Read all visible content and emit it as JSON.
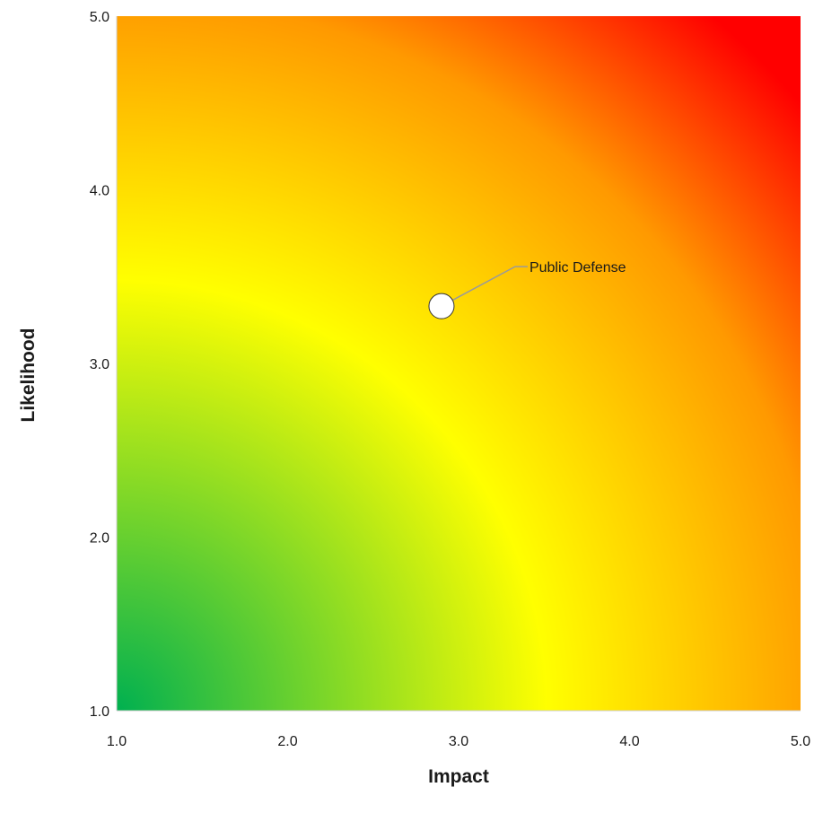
{
  "chart_data": {
    "type": "scatter",
    "title": "",
    "xlabel": "Impact",
    "ylabel": "Likelihood",
    "xlim": [
      1.0,
      5.0
    ],
    "ylim": [
      1.0,
      5.0
    ],
    "x_ticks": [
      "1.0",
      "2.0",
      "3.0",
      "4.0",
      "5.0"
    ],
    "y_ticks": [
      "1.0",
      "2.0",
      "3.0",
      "4.0",
      "5.0"
    ],
    "grid": false,
    "background": "risk-heatmap-gradient",
    "gradient_colors": {
      "low": "#00b050",
      "mid": "#ffff00",
      "high_mid": "#ffa500",
      "high": "#ff0000"
    },
    "points": [
      {
        "label": "Public Defense",
        "x": 2.9,
        "y": 3.33
      }
    ]
  }
}
